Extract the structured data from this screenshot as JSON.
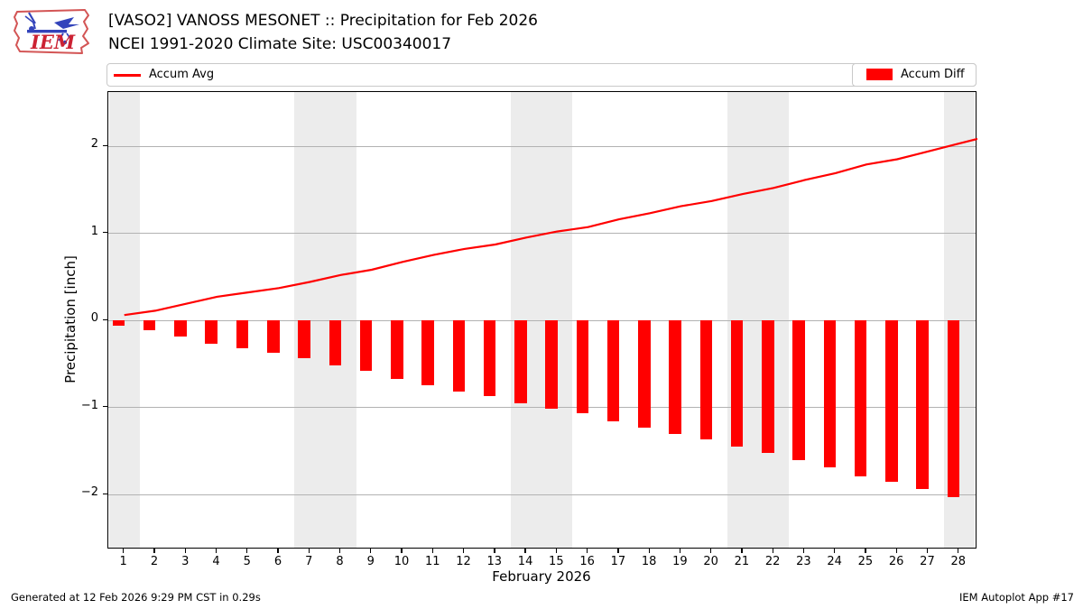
{
  "header": {
    "logo_text": "IEM",
    "title_line1": "[VASO2] VANOSS MESONET :: Precipitation for Feb 2026",
    "title_line2": "NCEI 1991-2020 Climate Site: USC00340017"
  },
  "footer": {
    "generated": "Generated at 12 Feb 2026 9:29 PM CST in 0.29s",
    "app": "IEM Autoplot App #17"
  },
  "colors": {
    "accent": "#ff0000",
    "weekend_band": "#ececec",
    "gridline": "#b2b2b2",
    "logo_red": "#cc2233",
    "logo_blue": "#3344bb"
  },
  "chart_data": {
    "type": "bar",
    "x": [
      1,
      2,
      3,
      4,
      5,
      6,
      7,
      8,
      9,
      10,
      11,
      12,
      13,
      14,
      15,
      16,
      17,
      18,
      19,
      20,
      21,
      22,
      23,
      24,
      25,
      26,
      27,
      28
    ],
    "xlabel": "February 2026",
    "ylabel": "Precipitation [inch]",
    "ylim": [
      -2.63,
      2.62
    ],
    "yticks": [
      -2,
      -1,
      0,
      1,
      2
    ],
    "grid": true,
    "legend_position": "top",
    "weekend_shaded_days": [
      1,
      7,
      8,
      14,
      15,
      21,
      22,
      28
    ],
    "series": [
      {
        "name": "Accum Avg",
        "type": "line",
        "color": "#ff0000",
        "values": [
          0.06,
          0.11,
          0.19,
          0.27,
          0.32,
          0.37,
          0.44,
          0.52,
          0.58,
          0.67,
          0.75,
          0.82,
          0.87,
          0.95,
          1.02,
          1.07,
          1.16,
          1.23,
          1.31,
          1.37,
          1.45,
          1.52,
          1.61,
          1.69,
          1.79,
          1.85,
          1.94,
          2.03
        ]
      },
      {
        "name": "Accum Diff",
        "type": "bar",
        "color": "#ff0000",
        "values": [
          -0.06,
          -0.11,
          -0.19,
          -0.27,
          -0.32,
          -0.37,
          -0.44,
          -0.52,
          -0.58,
          -0.67,
          -0.75,
          -0.82,
          -0.87,
          -0.95,
          -1.02,
          -1.07,
          -1.16,
          -1.23,
          -1.31,
          -1.37,
          -1.45,
          -1.52,
          -1.61,
          -1.69,
          -1.79,
          -1.85,
          -1.94,
          -2.03
        ]
      }
    ]
  }
}
